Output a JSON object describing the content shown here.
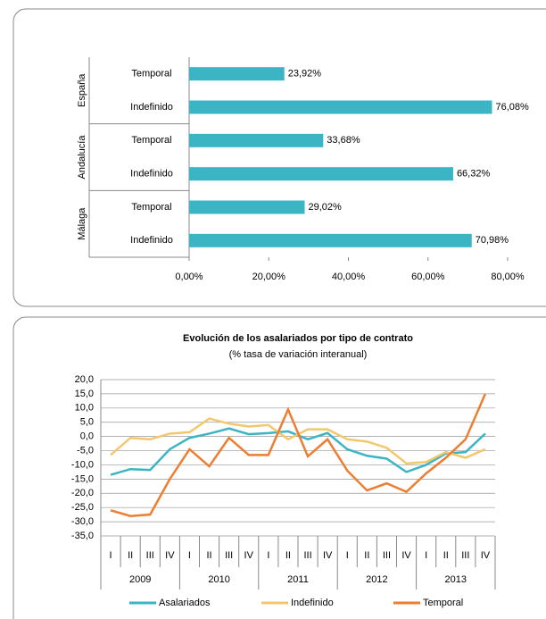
{
  "chart_data": [
    {
      "type": "hbar",
      "groups": [
        "España",
        "Andalucía",
        "Málaga"
      ],
      "categories": [
        "Temporal",
        "Indefinido",
        "Temporal",
        "Indefinido",
        "Temporal",
        "Indefinido"
      ],
      "values": [
        23.92,
        76.08,
        33.68,
        66.32,
        29.02,
        70.98
      ],
      "value_labels": [
        "23,92%",
        "76,08%",
        "33,68%",
        "66,32%",
        "29,02%",
        "70,98%"
      ],
      "color": "#3bb5c4",
      "xlim": [
        0,
        80
      ],
      "xticks": [
        {
          "value": 0,
          "label": "0,00%"
        },
        {
          "value": 20,
          "label": "20,00%"
        },
        {
          "value": 40,
          "label": "40,00%"
        },
        {
          "value": 60,
          "label": "60,00%"
        },
        {
          "value": 80,
          "label": "80,00%"
        }
      ]
    },
    {
      "type": "line",
      "title": "Evolución de  los asalariados por tipo de contrato",
      "subtitle": "(% tasa de variación interanual)",
      "categories": [
        "I",
        "II",
        "III",
        "IV",
        "I",
        "II",
        "III",
        "IV",
        "I",
        "II",
        "III",
        "IV",
        "I",
        "II",
        "III",
        "IV",
        "I",
        "II",
        "III",
        "IV"
      ],
      "years": [
        "2009",
        "2010",
        "2011",
        "2012",
        "2013"
      ],
      "series": [
        {
          "name": "Asalariados",
          "color": "#3bb5c4",
          "values": [
            -13.5,
            -11.5,
            -11.8,
            -4.5,
            -0.5,
            1,
            2.8,
            0.8,
            1.2,
            1.8,
            -1,
            1.2,
            -4.5,
            -6.8,
            -7.8,
            -12.5,
            -10,
            -6,
            -5.5,
            1
          ]
        },
        {
          "name": "Indefinido",
          "color": "#f2c76e",
          "values": [
            -6.5,
            -0.5,
            -1,
            1,
            1.5,
            6.3,
            4.5,
            3.5,
            4,
            -1,
            2.5,
            2.5,
            -1,
            -1.8,
            -4,
            -9.5,
            -9,
            -5.5,
            -7.5,
            -4.5
          ]
        },
        {
          "name": "Temporal",
          "color": "#ed7d31",
          "values": [
            -26,
            -28,
            -27.5,
            -15,
            -4.5,
            -10.5,
            -0.5,
            -6.5,
            -6.5,
            9.5,
            -7,
            -1,
            -12,
            -19,
            -16.5,
            -19.5,
            -13,
            -7.5,
            -1,
            15
          ]
        }
      ],
      "ylim": [
        -35,
        20
      ],
      "yticks": [
        {
          "value": 20,
          "label": "20,0"
        },
        {
          "value": 15,
          "label": "15,0"
        },
        {
          "value": 10,
          "label": "10,0"
        },
        {
          "value": 5,
          "label": "5,0"
        },
        {
          "value": 0,
          "label": "0,0"
        },
        {
          "value": -5,
          "label": "-5,0"
        },
        {
          "value": -10,
          "label": "-10,0"
        },
        {
          "value": -15,
          "label": "-15,0"
        },
        {
          "value": -20,
          "label": "-20,0"
        },
        {
          "value": -25,
          "label": "-25,0"
        },
        {
          "value": -30,
          "label": "-30,0"
        },
        {
          "value": -35,
          "label": "-35,0"
        }
      ],
      "grid": true
    }
  ]
}
